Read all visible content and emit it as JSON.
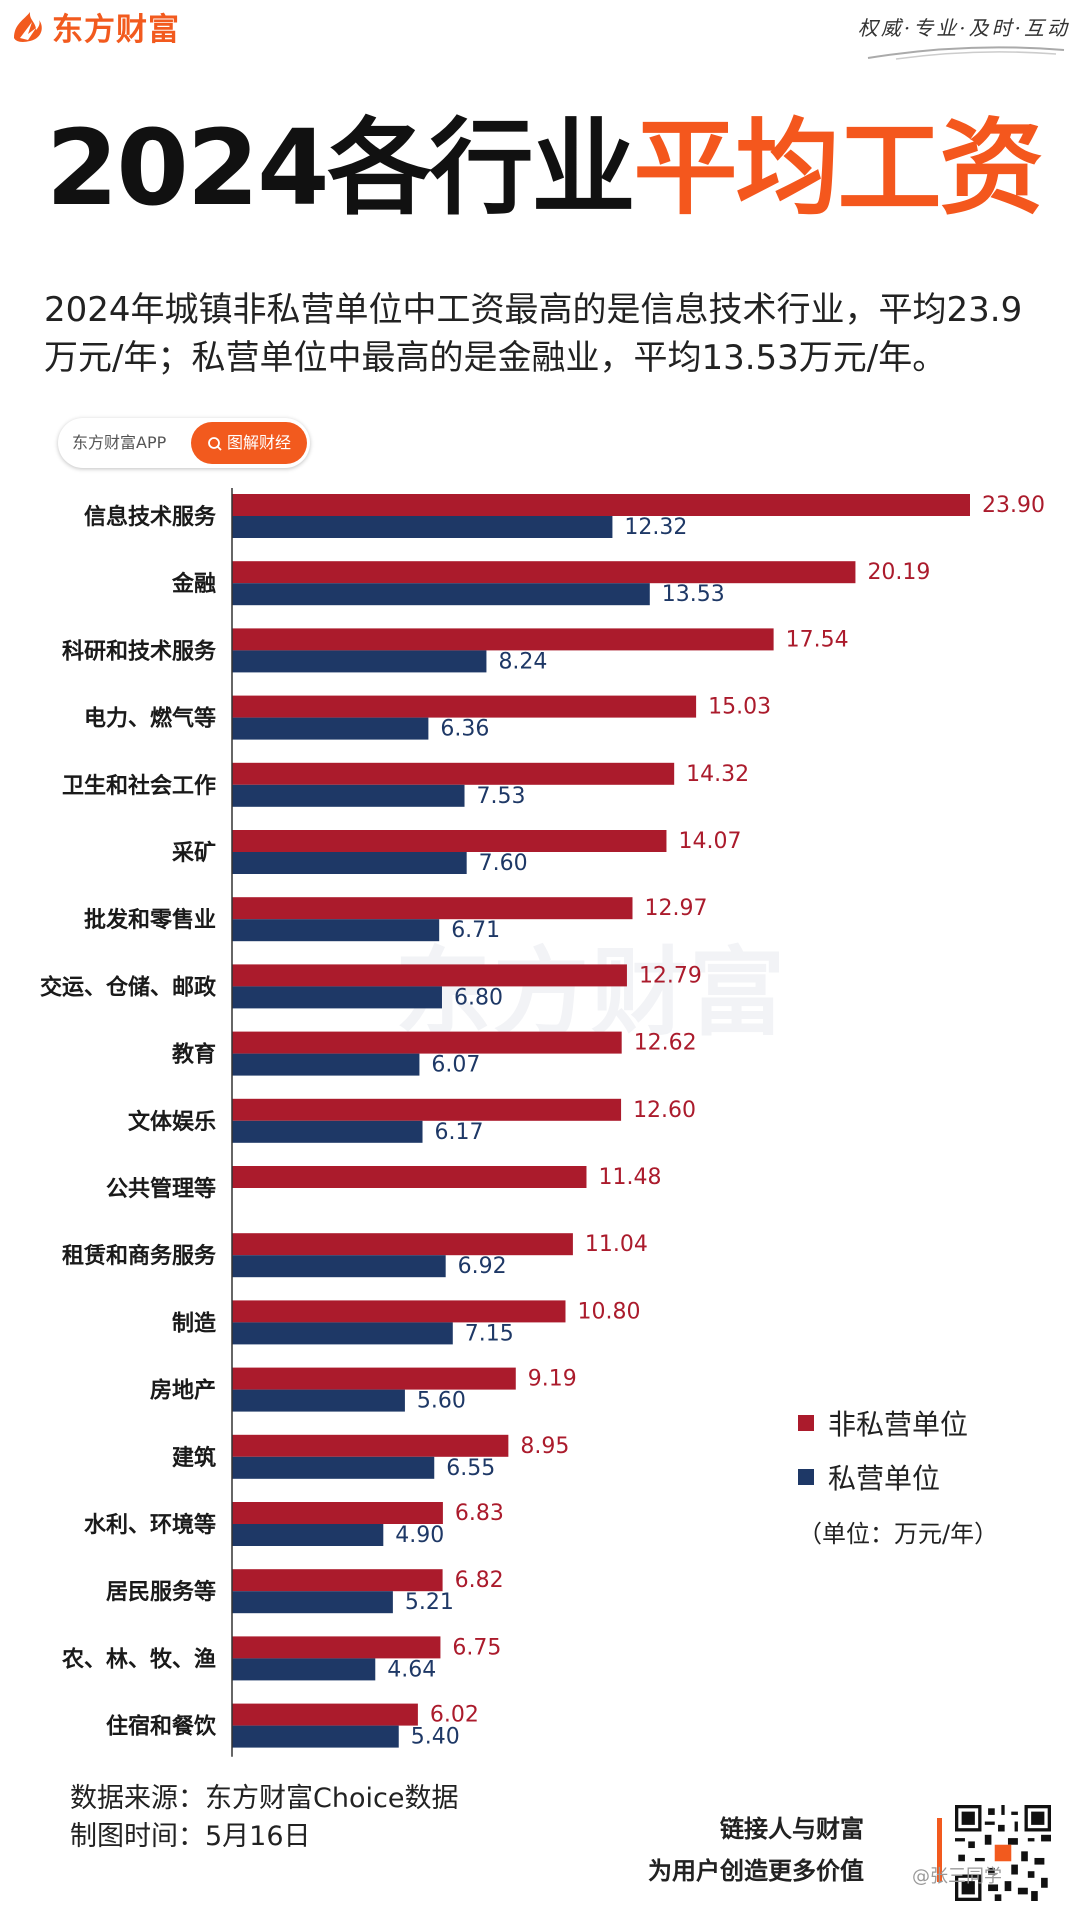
{
  "brand": {
    "name": "东方财富",
    "slogan": "权威·专业·及时·互动",
    "color": "#f25a1e"
  },
  "title": {
    "part1": "2024各行业",
    "part2": "平均工资"
  },
  "subtitle": "2024年城镇非私营单位中工资最高的是信息技术行业，平均23.9万元/年；私营单位中最高的是金融业，平均13.53万元/年。",
  "tag": {
    "app": "东方财富APP",
    "label": "图解财经"
  },
  "watermark": "东方财富",
  "chart_data": {
    "type": "bar",
    "orientation": "horizontal",
    "title": "2024各行业平均工资",
    "unit": "（单位：万元/年）",
    "categories": [
      "信息技术服务",
      "金融",
      "科研和技术服务",
      "电力、燃气等",
      "卫生和社会工作",
      "采矿",
      "批发和零售业",
      "交运、仓储、邮政",
      "教育",
      "文体娱乐",
      "公共管理等",
      "租赁和商务服务",
      "制造",
      "房地产",
      "建筑",
      "水利、环境等",
      "居民服务等",
      "农、林、牧、渔",
      "住宿和餐饮"
    ],
    "series": [
      {
        "name": "非私营单位",
        "color": "#ab1b2c",
        "values": [
          23.9,
          20.19,
          17.54,
          15.03,
          14.32,
          14.07,
          12.97,
          12.79,
          12.62,
          12.6,
          11.48,
          11.04,
          10.8,
          9.19,
          8.95,
          6.83,
          6.82,
          6.75,
          6.02
        ],
        "labels": [
          "23.90",
          "20.19",
          "17.54",
          "15.03",
          "14.32",
          "14.07",
          "12.97",
          "12.79",
          "12.62",
          "12.60",
          "11.48",
          "11.04",
          "10.80",
          "9.19",
          "8.95",
          "6.83",
          "6.82",
          "6.75",
          "6.02"
        ]
      },
      {
        "name": "私营单位",
        "color": "#1e3866",
        "values": [
          12.32,
          13.53,
          8.24,
          6.36,
          7.53,
          7.6,
          6.71,
          6.8,
          6.07,
          6.17,
          null,
          6.92,
          7.15,
          5.6,
          6.55,
          4.9,
          5.21,
          4.64,
          5.4
        ],
        "labels": [
          "12.32",
          "13.53",
          "8.24",
          "6.36",
          "7.53",
          "7.60",
          "6.71",
          "6.80",
          "6.07",
          "6.17",
          "",
          "6.92",
          "7.15",
          "5.60",
          "6.55",
          "4.90",
          "5.21",
          "4.64",
          "5.40"
        ]
      }
    ],
    "xlim": [
      0,
      23.9
    ],
    "legend_position": "right"
  },
  "footer": {
    "source": "数据来源：东方财富Choice数据",
    "date": "制图时间：5月16日",
    "tagline1": "链接人与财富",
    "tagline2": "为用户创造更多价值",
    "weibo": "@张三同学"
  }
}
